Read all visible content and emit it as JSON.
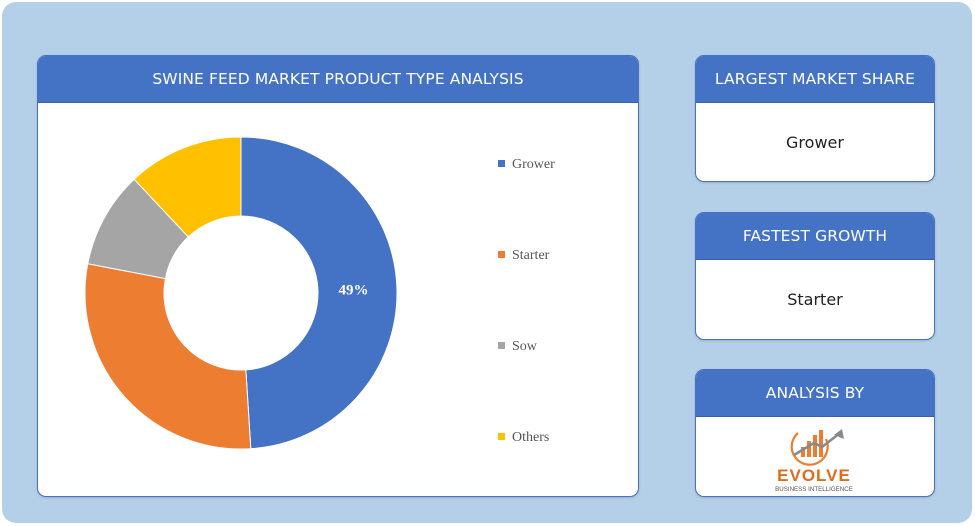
{
  "chart_card": {
    "title": "SWINE FEED MARKET PRODUCT TYPE ANALYSIS"
  },
  "largest_share": {
    "heading": "LARGEST MARKET SHARE",
    "value": "Grower"
  },
  "fastest_growth": {
    "heading": "FASTEST GROWTH",
    "value": "Starter"
  },
  "analysis_by": {
    "heading": "ANALYSIS BY",
    "logo_name": "EVOLVE",
    "logo_tagline": "BUSINESS INTELLIGENCE"
  },
  "colors": {
    "panel_header": "#4472c4",
    "background": "#b4cfe8"
  },
  "chart_data": {
    "type": "pie",
    "donut": true,
    "categories": [
      "Grower",
      "Starter",
      "Sow",
      "Others"
    ],
    "values": [
      49,
      29,
      10,
      12
    ],
    "colors": [
      "#4472c4",
      "#ed7d31",
      "#a5a5a5",
      "#ffc000"
    ],
    "data_labels": [
      "49%",
      "",
      "",
      ""
    ],
    "legend_position": "right"
  }
}
